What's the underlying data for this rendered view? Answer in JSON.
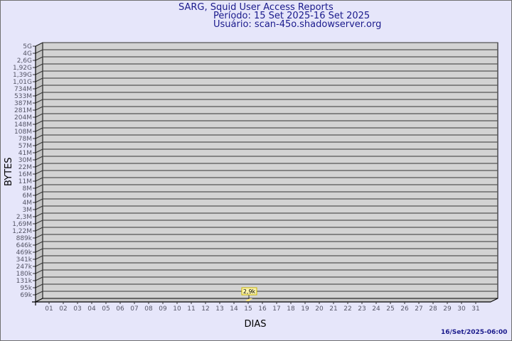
{
  "chart_data": {
    "type": "bar",
    "title": "SARG, Squid User Access Reports",
    "subtitle_period": "Período: 15 Set 2025-16 Set 2025",
    "subtitle_user": "Usuário: scan-45o.shadowserver.org",
    "xlabel": "DIAS",
    "ylabel": "BYTES",
    "y_scale": "log",
    "y_tick_labels": [
      "5G",
      "4G",
      "2,6G",
      "1,92G",
      "1,39G",
      "1,01G",
      "734M",
      "533M",
      "387M",
      "281M",
      "204M",
      "148M",
      "108M",
      "78M",
      "57M",
      "41M",
      "30M",
      "22M",
      "16M",
      "11M",
      "8M",
      "6M",
      "4M",
      "3M",
      "2,3M",
      "1,69M",
      "1,22M",
      "889k",
      "646k",
      "469k",
      "341k",
      "247k",
      "180k",
      "131k",
      "95k",
      "69k"
    ],
    "categories": [
      "01",
      "02",
      "03",
      "04",
      "05",
      "06",
      "07",
      "08",
      "09",
      "10",
      "11",
      "12",
      "13",
      "14",
      "15",
      "16",
      "17",
      "18",
      "19",
      "20",
      "21",
      "22",
      "23",
      "24",
      "25",
      "26",
      "27",
      "28",
      "29",
      "30",
      "31"
    ],
    "bars": [
      {
        "category": "15",
        "value": 2900,
        "label": "2,9k"
      }
    ],
    "grid": true,
    "colors": {
      "background": "#e6e6fa",
      "plot": "#d3d3d3",
      "bar": "#ffe680",
      "text": "#1a1a8c",
      "tick_text": "#555566"
    },
    "footer": "16/Set/2025-06:00"
  }
}
